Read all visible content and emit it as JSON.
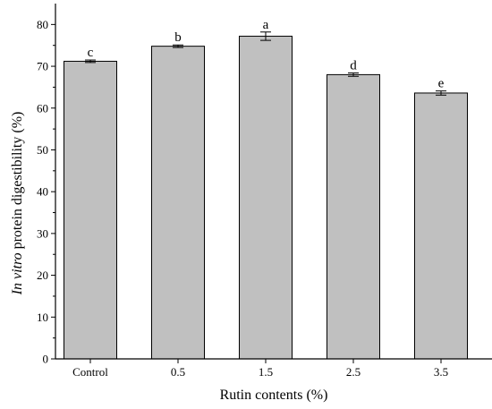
{
  "chart_data": {
    "type": "bar",
    "categories": [
      "Control",
      "0.5",
      "1.5",
      "2.5",
      "3.5"
    ],
    "values": [
      71.2,
      74.8,
      77.2,
      68.0,
      63.6
    ],
    "errors": [
      0.3,
      0.3,
      1.0,
      0.4,
      0.5
    ],
    "significance_letters": [
      "c",
      "b",
      "a",
      "d",
      "e"
    ],
    "xlabel": "Rutin contents (%)",
    "ylabel_italic": "In vitro",
    "ylabel_rest": " protein digestibility (%)",
    "ylim": [
      0,
      85
    ],
    "yticks": [
      0,
      10,
      20,
      30,
      40,
      50,
      60,
      70,
      80
    ],
    "bar_color": "#c0c0c0",
    "bar_edge_color": "#000000",
    "grid": false,
    "legend": "none"
  }
}
